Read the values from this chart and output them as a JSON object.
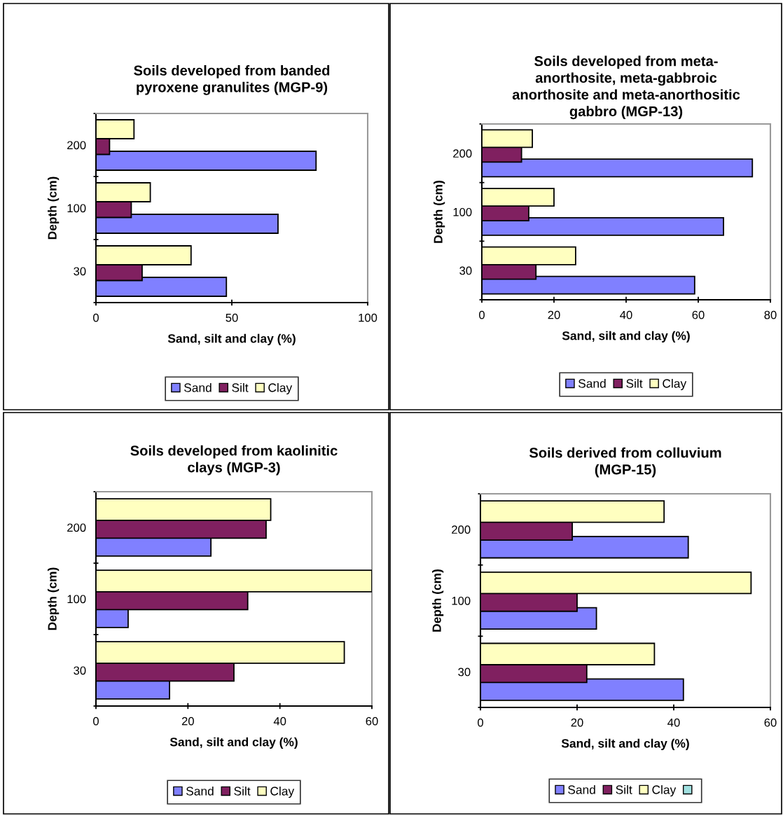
{
  "chart_data": [
    {
      "type": "bar",
      "orientation": "horizontal",
      "title": "Soils developed from banded\npyroxene granulites (MGP-9)",
      "xlabel": "Sand, silt and clay (%)",
      "ylabel": "Depth (cm)",
      "categories": [
        "200",
        "100",
        "30"
      ],
      "xlim": [
        0,
        100
      ],
      "xticks": [
        0,
        50,
        100
      ],
      "grid": false,
      "legend": "bottom",
      "series": [
        {
          "name": "Sand",
          "color": "#8080ff",
          "values": [
            81,
            67,
            48
          ]
        },
        {
          "name": "Silt",
          "color": "#802060",
          "values": [
            5,
            13,
            17
          ]
        },
        {
          "name": "Clay",
          "color": "#ffffc0",
          "values": [
            14,
            20,
            35
          ]
        }
      ]
    },
    {
      "type": "bar",
      "orientation": "horizontal",
      "title": "Soils developed from meta-\nanorthosite, meta-gabbroic\nanorthosite and meta-anorthositic\ngabbro (MGP-13)",
      "xlabel": "Sand, silt and clay (%)",
      "ylabel": "Depth (cm)",
      "categories": [
        "200",
        "100",
        "30"
      ],
      "xlim": [
        0,
        80
      ],
      "xticks": [
        0,
        20,
        40,
        60,
        80
      ],
      "grid": false,
      "legend": "bottom",
      "series": [
        {
          "name": "Sand",
          "color": "#8080ff",
          "values": [
            75,
            67,
            59
          ]
        },
        {
          "name": "Silt",
          "color": "#802060",
          "values": [
            11,
            13,
            15
          ]
        },
        {
          "name": "Clay",
          "color": "#ffffc0",
          "values": [
            14,
            20,
            26
          ]
        }
      ]
    },
    {
      "type": "bar",
      "orientation": "horizontal",
      "title": "Soils developed from kaolinitic\nclays (MGP-3)",
      "xlabel": "Sand, silt and clay (%)",
      "ylabel": "Depth (cm)",
      "categories": [
        "200",
        "100",
        "30"
      ],
      "xlim": [
        0,
        60
      ],
      "xticks": [
        0,
        20,
        40,
        60
      ],
      "grid": false,
      "legend": "bottom",
      "series": [
        {
          "name": "Sand",
          "color": "#8080ff",
          "values": [
            25,
            7,
            16
          ]
        },
        {
          "name": "Silt",
          "color": "#802060",
          "values": [
            37,
            33,
            30
          ]
        },
        {
          "name": "Clay",
          "color": "#ffffc0",
          "values": [
            38,
            60,
            54
          ]
        }
      ]
    },
    {
      "type": "bar",
      "orientation": "horizontal",
      "title": "Soils derived from colluvium\n(MGP-15)",
      "xlabel": "Sand, silt and clay (%)",
      "ylabel": "Depth (cm)",
      "categories": [
        "200",
        "100",
        "30"
      ],
      "xlim": [
        0,
        60
      ],
      "xticks": [
        0,
        20,
        40,
        60
      ],
      "grid": false,
      "legend": "bottom",
      "series": [
        {
          "name": "Sand",
          "color": "#8080ff",
          "values": [
            43,
            24,
            42
          ]
        },
        {
          "name": "Silt",
          "color": "#802060",
          "values": [
            19,
            20,
            22
          ]
        },
        {
          "name": "Clay",
          "color": "#ffffc0",
          "values": [
            38,
            56,
            36
          ]
        },
        {
          "color": "#a0e0e0",
          "values": [
            null,
            null,
            null
          ]
        }
      ]
    }
  ]
}
